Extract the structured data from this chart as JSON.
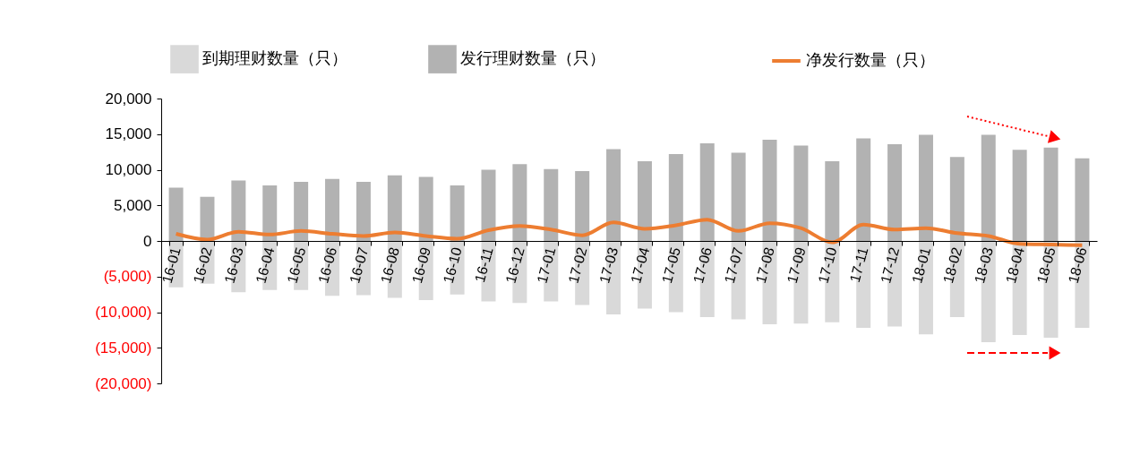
{
  "chart_data": {
    "type": "bar",
    "categories": [
      "16-01",
      "16-02",
      "16-03",
      "16-04",
      "16-05",
      "16-06",
      "16-07",
      "16-08",
      "16-09",
      "16-10",
      "16-11",
      "16-12",
      "17-01",
      "17-02",
      "17-03",
      "17-04",
      "17-05",
      "17-06",
      "17-07",
      "17-08",
      "17-09",
      "17-10",
      "17-11",
      "17-12",
      "18-01",
      "18-02",
      "18-03",
      "18-04",
      "18-05",
      "18-06"
    ],
    "series": [
      {
        "name": "到期理财数量（只）",
        "color": "#d9d9d9",
        "values": [
          -6500,
          -6000,
          -7200,
          -6900,
          -6900,
          -7700,
          -7600,
          -8000,
          -8300,
          -7500,
          -8500,
          -8700,
          -8500,
          -9000,
          -10300,
          -9500,
          -10000,
          -10700,
          -11000,
          -11700,
          -11600,
          -11400,
          -12200,
          -12000,
          -13100,
          -10700,
          -14200,
          -13200,
          -13600,
          -12200
        ]
      },
      {
        "name": "发行理财数量（只）",
        "color": "#b2b2b2",
        "values": [
          7500,
          6200,
          8500,
          7800,
          8300,
          8700,
          8300,
          9200,
          9000,
          7800,
          10000,
          10800,
          10100,
          9800,
          12900,
          11200,
          12200,
          13700,
          12400,
          14200,
          13400,
          11200,
          14400,
          13600,
          14900,
          11800,
          14900,
          12800,
          13100,
          11600
        ]
      },
      {
        "name": "净发行数量（只）",
        "type": "line",
        "color": "#ed7d31",
        "values": [
          1000,
          200,
          1300,
          900,
          1400,
          1000,
          700,
          1200,
          700,
          300,
          1500,
          2100,
          1600,
          800,
          2600,
          1700,
          2200,
          3000,
          1400,
          2500,
          1800,
          -200,
          2300,
          1600,
          1800,
          1100,
          700,
          -400,
          -500,
          -600
        ]
      }
    ],
    "ylim": [
      -20000,
      20000
    ],
    "yticks": [
      {
        "value": -20000,
        "label": "(20,000)"
      },
      {
        "value": -15000,
        "label": "(15,000)"
      },
      {
        "value": -10000,
        "label": "(10,000)"
      },
      {
        "value": -5000,
        "label": "(5,000)"
      },
      {
        "value": 0,
        "label": "0"
      },
      {
        "value": 5000,
        "label": "5,000"
      },
      {
        "value": 10000,
        "label": "10,000"
      },
      {
        "value": 15000,
        "label": "15,000"
      },
      {
        "value": 20000,
        "label": "20,000"
      }
    ],
    "grid": false,
    "legend": "top",
    "stacked": true
  }
}
